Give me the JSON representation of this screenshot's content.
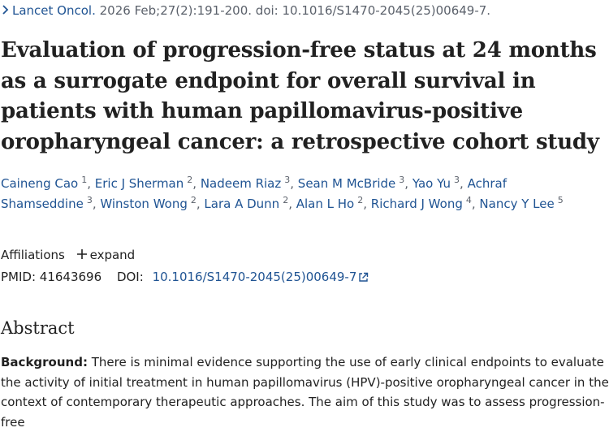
{
  "citation": {
    "journal": "Lancet Oncol.",
    "details": "2026 Feb;27(2):191-200. doi: 10.1016/S1470-2045(25)00649-7."
  },
  "title": "Evaluation of progression-free status at 24 months as a surrogate endpoint for overall survival in patients with human papillomavirus-positive oropharyngeal cancer: a retrospective cohort study",
  "authors": [
    {
      "name": "Caineng Cao",
      "aff": "1"
    },
    {
      "name": "Eric J Sherman",
      "aff": "2"
    },
    {
      "name": "Nadeem Riaz",
      "aff": "3"
    },
    {
      "name": "Sean M McBride",
      "aff": "3"
    },
    {
      "name": "Yao Yu",
      "aff": "3"
    },
    {
      "name": "Achraf Shamseddine",
      "aff": "3"
    },
    {
      "name": "Winston Wong",
      "aff": "2"
    },
    {
      "name": "Lara A Dunn",
      "aff": "2"
    },
    {
      "name": "Alan L Ho",
      "aff": "2"
    },
    {
      "name": "Richard J Wong",
      "aff": "4"
    },
    {
      "name": "Nancy Y Lee",
      "aff": "5"
    }
  ],
  "affiliations": {
    "label": "Affiliations",
    "expand_label": "expand"
  },
  "identifiers": {
    "pmid_label": "PMID:",
    "pmid": "41643696",
    "doi_label": "DOI:",
    "doi": "10.1016/S1470-2045(25)00649-7"
  },
  "abstract": {
    "heading": "Abstract",
    "background_label": "Background:",
    "background_text": "There is minimal evidence supporting the use of early clinical endpoints to evaluate the activity of initial treatment in human papillomavirus (HPV)-positive oropharyngeal cancer in the context of contemporary therapeutic approaches. The aim of this study was to assess progression-free"
  },
  "icons": {
    "chevron": "chevron-right-icon",
    "plus": "plus-icon",
    "external": "external-link-icon"
  },
  "colors": {
    "link": "#205493",
    "muted": "#5b616b",
    "text": "#212121"
  }
}
